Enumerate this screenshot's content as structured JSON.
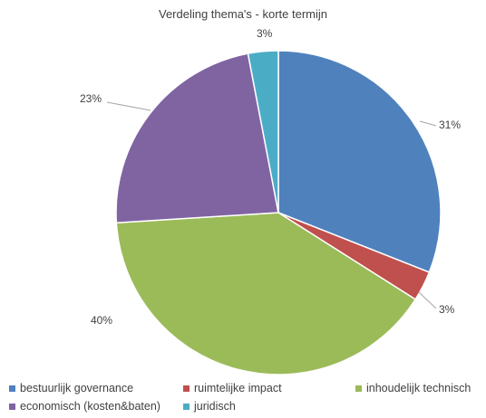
{
  "chart_data": {
    "type": "pie",
    "title": "Verdeling thema's - korte termijn",
    "slices": [
      {
        "label": "bestuurlijk governance",
        "value": 31,
        "display": "31%",
        "color": "#4F81BD"
      },
      {
        "label": "ruimtelijke impact",
        "value": 3,
        "display": "3%",
        "color": "#C0504D"
      },
      {
        "label": "inhoudelijk technisch",
        "value": 40,
        "display": "40%",
        "color": "#9BBB59"
      },
      {
        "label": "economisch (kosten&baten)",
        "value": 23,
        "display": "23%",
        "color": "#8064A2"
      },
      {
        "label": "juridisch",
        "value": 3,
        "display": "3%",
        "color": "#4BACC6"
      }
    ],
    "legend_position": "bottom"
  }
}
